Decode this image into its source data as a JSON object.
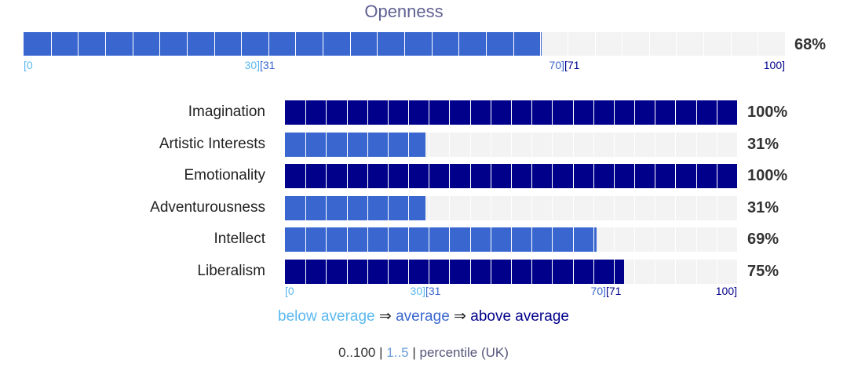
{
  "colors": {
    "below": "#5bb8ef",
    "average": "#3a67cf",
    "above": "#00008b",
    "track": "#f3f3f3"
  },
  "chart_data": [
    {
      "type": "bar",
      "title": "Openness",
      "categories": [
        "Openness"
      ],
      "values": [
        68
      ],
      "value_labels": [
        "68%"
      ],
      "xlim": [
        0,
        100
      ],
      "ticks": [
        "[0",
        "30]",
        "[31",
        "70]",
        "[71",
        "100]"
      ]
    },
    {
      "type": "bar",
      "categories": [
        "Imagination",
        "Artistic Interests",
        "Emotionality",
        "Adventurousness",
        "Intellect",
        "Liberalism"
      ],
      "values": [
        100,
        31,
        100,
        31,
        69,
        75
      ],
      "value_labels": [
        "100%",
        "31%",
        "100%",
        "31%",
        "69%",
        "75%"
      ],
      "xlim": [
        0,
        100
      ],
      "ticks": [
        "[0",
        "30]",
        "[31",
        "70]",
        "[71",
        "100]"
      ]
    }
  ],
  "legend": {
    "below": "below average",
    "arrow1": "⇒",
    "average": "average",
    "arrow2": "⇒",
    "above": "above average"
  },
  "footer": {
    "opt_a": "0..100",
    "sep1": "|",
    "opt_b": "1..5",
    "sep2": "|",
    "opt_c": "percentile (UK)"
  }
}
